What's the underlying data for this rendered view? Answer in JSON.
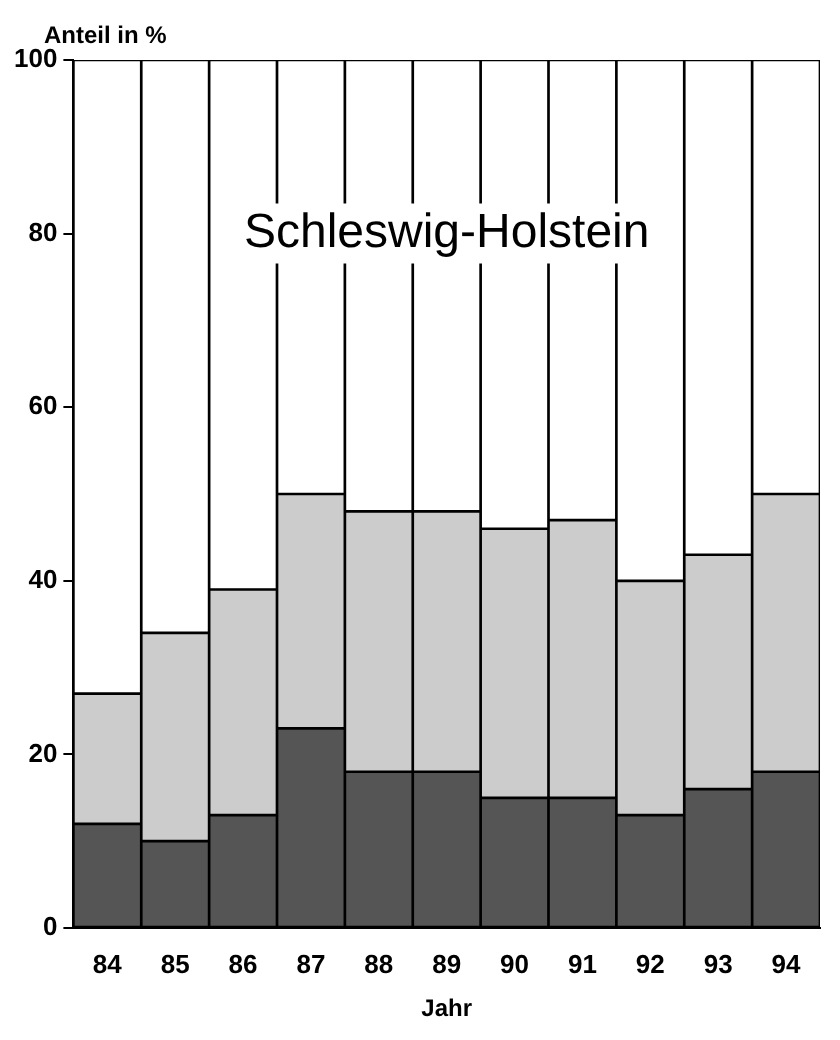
{
  "chart_data": {
    "type": "bar",
    "stacked": true,
    "ylabel": "Anteil in %",
    "xlabel": "Jahr",
    "categories": [
      "84",
      "85",
      "86",
      "87",
      "88",
      "89",
      "90",
      "91",
      "92",
      "93",
      "94"
    ],
    "series": [
      {
        "color": "#555555",
        "values": [
          12,
          10,
          13,
          23,
          18,
          18,
          15,
          15,
          13,
          16,
          18
        ]
      },
      {
        "color": "#cccccc",
        "values": [
          15,
          24,
          26,
          27,
          30,
          30,
          31,
          32,
          27,
          27,
          32
        ]
      },
      {
        "color": "#ffffff",
        "values": [
          73,
          66,
          61,
          50,
          52,
          52,
          54,
          53,
          60,
          57,
          50
        ]
      }
    ],
    "ylim": [
      0,
      100
    ],
    "yticks": [
      0,
      20,
      40,
      60,
      80,
      100
    ],
    "grid": false,
    "legend": false,
    "annotations": [
      "Schleswig-Holstein"
    ]
  }
}
